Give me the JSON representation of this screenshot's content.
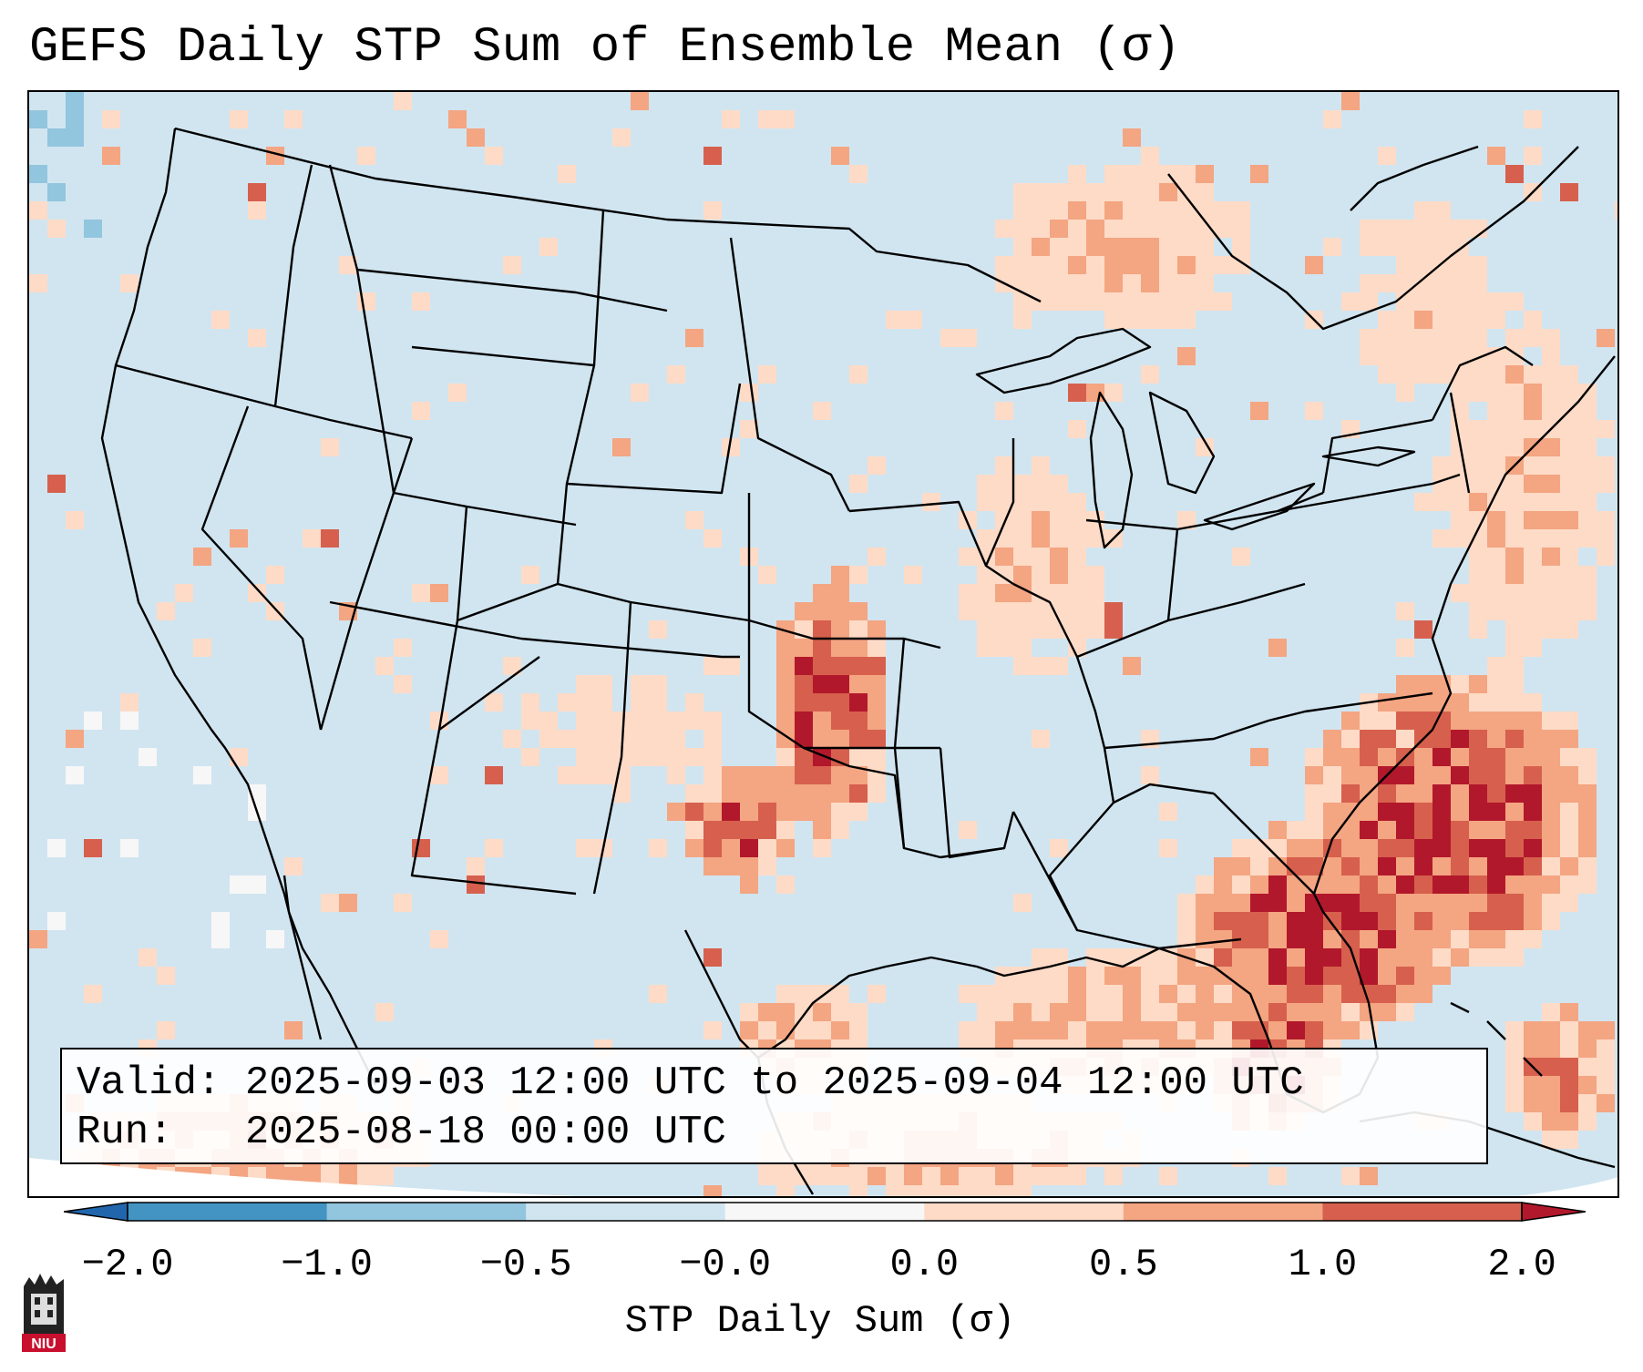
{
  "title": "GEFS Daily STP Sum of Ensemble Mean (σ)",
  "info": {
    "valid_line": "Valid: 2025-09-03 12:00 UTC to 2025-09-04 12:00 UTC",
    "run_line": "Run:   2025-08-18 00:00 UTC"
  },
  "colorbar": {
    "label": "STP Daily Sum (σ)",
    "tick_labels": [
      "−2.0",
      "−1.0",
      "−0.5",
      "−0.0",
      "0.0",
      "0.5",
      "1.0",
      "2.0"
    ],
    "bins": [
      {
        "range": "<-2.0",
        "color": "#2166ac"
      },
      {
        "range": "-2.0 to -1.0",
        "color": "#4393c3"
      },
      {
        "range": "-1.0 to -0.5",
        "color": "#92c5de"
      },
      {
        "range": "-0.5 to -0.0",
        "color": "#d1e5f0"
      },
      {
        "range": "-0.0 to 0.0",
        "color": "#f7f7f7"
      },
      {
        "range": "0.0 to 0.5",
        "color": "#fddbc7"
      },
      {
        "range": "0.5 to 1.0",
        "color": "#f4a582"
      },
      {
        "range": "1.0 to 2.0",
        "color": "#d6604d"
      },
      {
        "range": ">2.0",
        "color": "#b2182b"
      }
    ]
  },
  "logo": {
    "text": "NIU",
    "color": "#c8102e"
  }
}
